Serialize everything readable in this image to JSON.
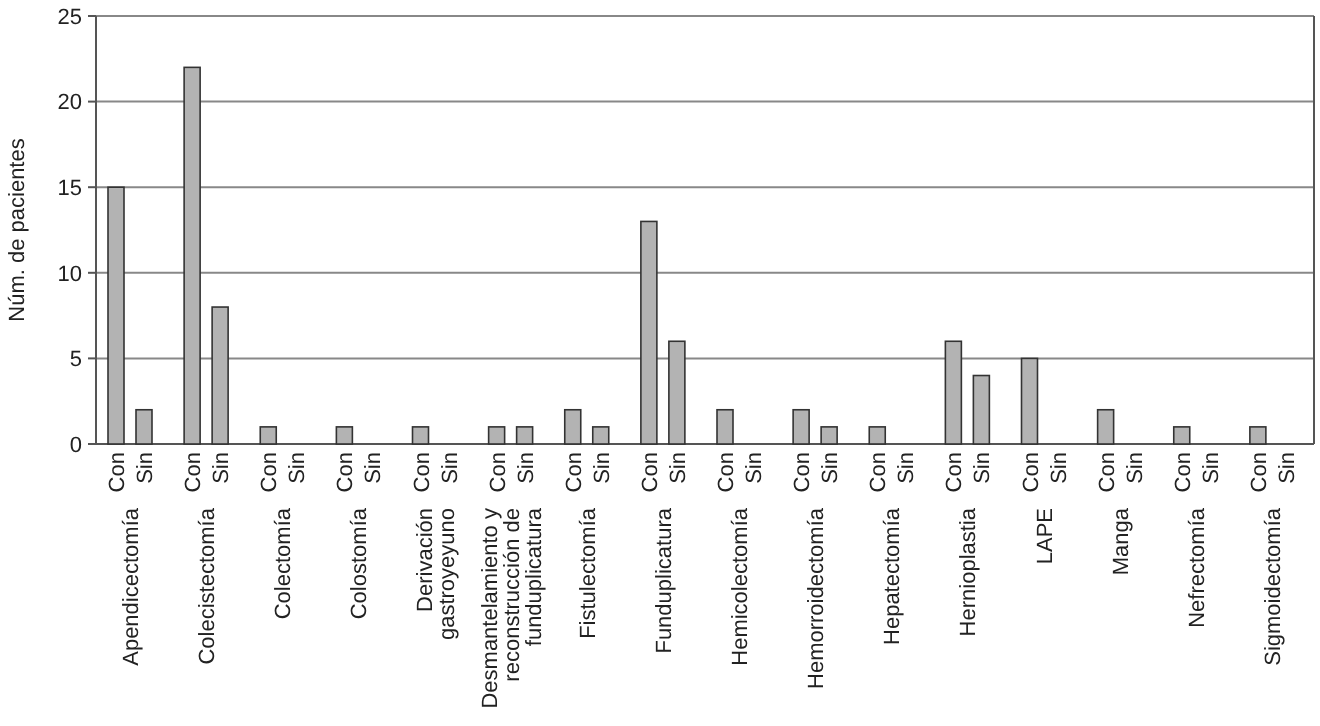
{
  "chart_data": {
    "type": "bar",
    "ylabel": "Núm. de pacientes",
    "categories": [
      "Apendicectomía",
      "Colecistectomía",
      "Colectomía",
      "Colostomía",
      "Derivación gastroyeyuno",
      "Desmantelamiento y reconstrucción de funduplicatura",
      "Fistulectomía",
      "Funduplicatura",
      "Hemicolectomía",
      "Hemorroidectomía",
      "Hepatectomía",
      "Hernioplastia",
      "LAPE",
      "Manga",
      "Nefrectomía",
      "Sigmoidectomía"
    ],
    "series": [
      {
        "name": "Con",
        "color": "#b3b3b3",
        "values": [
          15,
          22,
          1,
          1,
          1,
          1,
          2,
          13,
          2,
          2,
          1,
          6,
          5,
          2,
          1,
          1
        ]
      },
      {
        "name": "Sin",
        "color": "#b3b3b3",
        "values": [
          2,
          8,
          0,
          0,
          0,
          1,
          1,
          6,
          0,
          1,
          0,
          4,
          0,
          0,
          0,
          0
        ]
      }
    ],
    "ylim": [
      0,
      25
    ],
    "yticks": [
      0,
      5,
      10,
      15,
      20,
      25
    ],
    "grid": "y"
  }
}
